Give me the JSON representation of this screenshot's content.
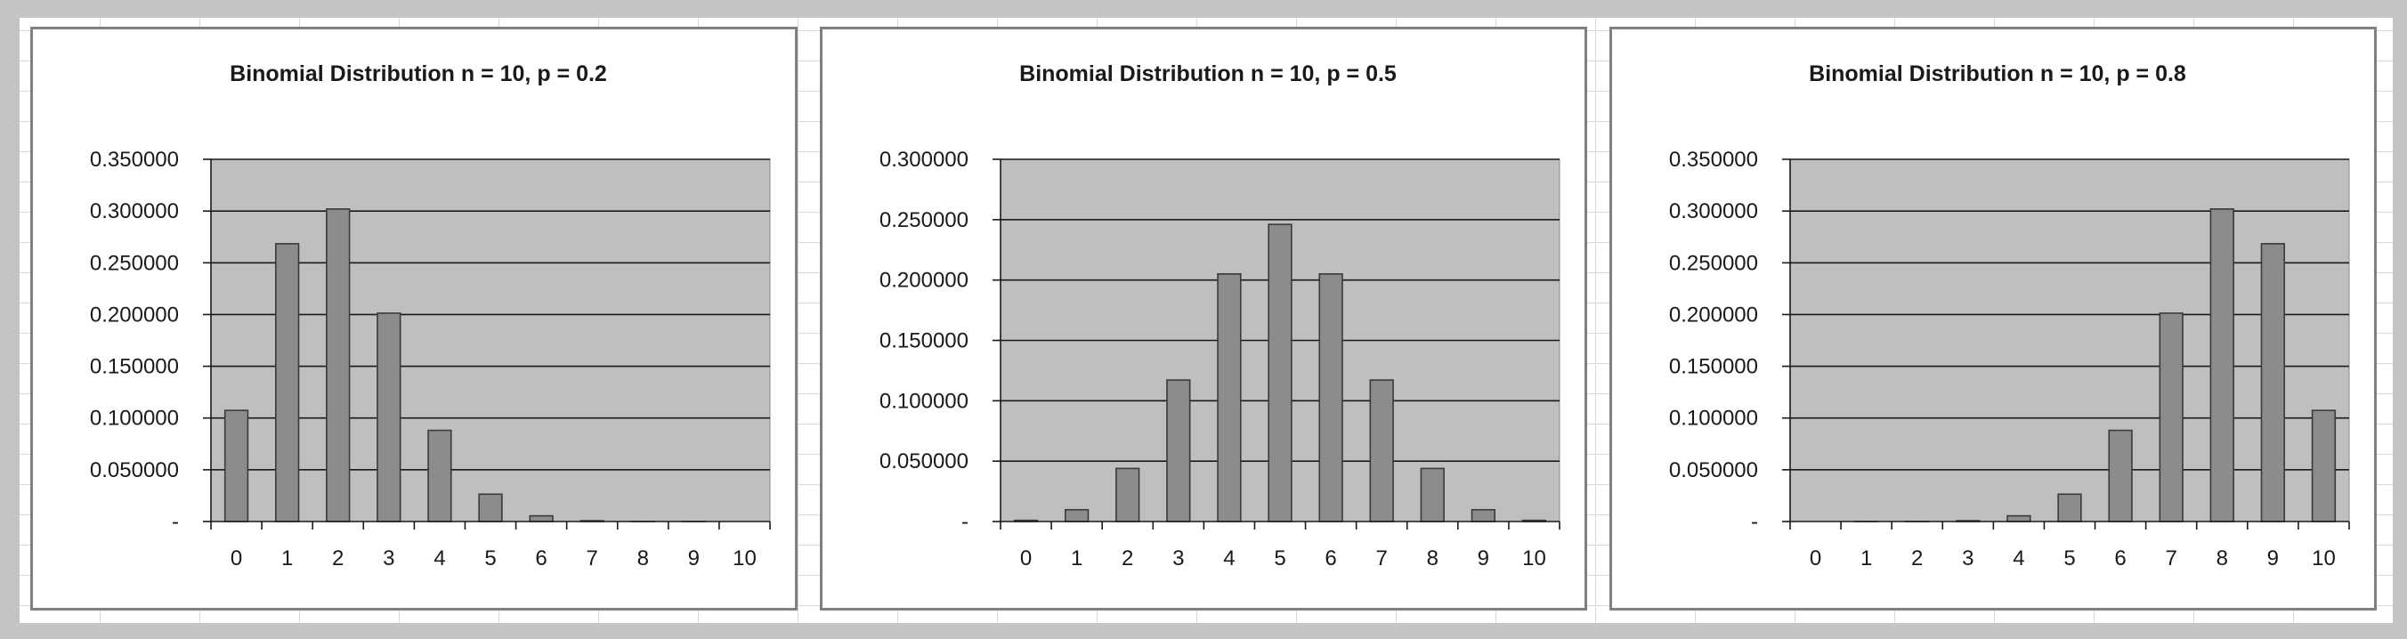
{
  "chart_data": [
    {
      "type": "bar",
      "title": "Binomial Distribution n = 10, p = 0.2",
      "categories": [
        "0",
        "1",
        "2",
        "3",
        "4",
        "5",
        "6",
        "7",
        "8",
        "9",
        "10"
      ],
      "values": [
        0.107374,
        0.268435,
        0.30199,
        0.201327,
        0.08808,
        0.026424,
        0.005505,
        0.000786,
        7.4e-05,
        4e-06,
        0.0
      ],
      "ylim": [
        0,
        0.35
      ],
      "yticks": [
        0,
        0.05,
        0.1,
        0.15,
        0.2,
        0.25,
        0.3,
        0.35
      ],
      "ytick_labels": [
        "-",
        "0.050000",
        "0.100000",
        "0.150000",
        "0.200000",
        "0.250000",
        "0.300000",
        "0.350000"
      ],
      "grid": true,
      "colors": {
        "plot_bg": "#bfbfbf",
        "bar": "#8c8c8c",
        "bar_edge": "#3a3a3a",
        "grid": "#1a1a1a"
      }
    },
    {
      "type": "bar",
      "title": "Binomial Distribution n = 10, p = 0.5",
      "categories": [
        "0",
        "1",
        "2",
        "3",
        "4",
        "5",
        "6",
        "7",
        "8",
        "9",
        "10"
      ],
      "values": [
        0.000977,
        0.009766,
        0.043945,
        0.117188,
        0.205078,
        0.246094,
        0.205078,
        0.117188,
        0.043945,
        0.009766,
        0.000977
      ],
      "ylim": [
        0,
        0.3
      ],
      "yticks": [
        0,
        0.05,
        0.1,
        0.15,
        0.2,
        0.25,
        0.3
      ],
      "ytick_labels": [
        "-",
        "0.050000",
        "0.100000",
        "0.150000",
        "0.200000",
        "0.250000",
        "0.300000"
      ],
      "grid": true,
      "colors": {
        "plot_bg": "#bfbfbf",
        "bar": "#8c8c8c",
        "bar_edge": "#3a3a3a",
        "grid": "#1a1a1a"
      }
    },
    {
      "type": "bar",
      "title": "Binomial Distribution n = 10, p = 0.8",
      "categories": [
        "0",
        "1",
        "2",
        "3",
        "4",
        "5",
        "6",
        "7",
        "8",
        "9",
        "10"
      ],
      "values": [
        0.0,
        4e-06,
        7.4e-05,
        0.000786,
        0.005505,
        0.026424,
        0.08808,
        0.201327,
        0.30199,
        0.268435,
        0.107374
      ],
      "ylim": [
        0,
        0.35
      ],
      "yticks": [
        0,
        0.05,
        0.1,
        0.15,
        0.2,
        0.25,
        0.3,
        0.35
      ],
      "ytick_labels": [
        "-",
        "0.050000",
        "0.100000",
        "0.150000",
        "0.200000",
        "0.250000",
        "0.300000",
        "0.350000"
      ],
      "grid": true,
      "colors": {
        "plot_bg": "#bfbfbf",
        "bar": "#8c8c8c",
        "bar_edge": "#3a3a3a",
        "grid": "#1a1a1a"
      }
    }
  ]
}
